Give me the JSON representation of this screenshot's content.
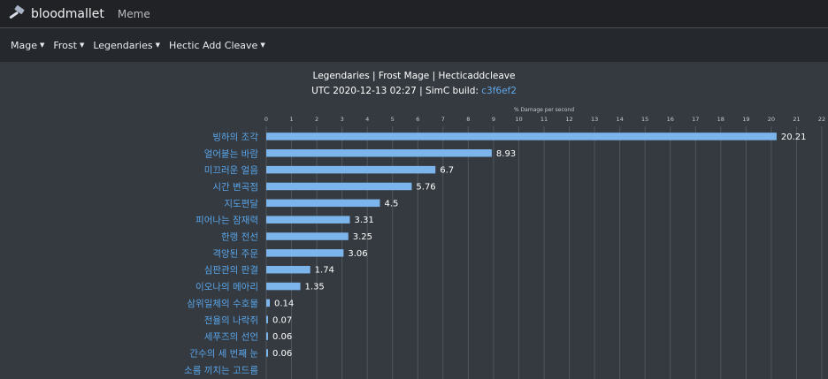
{
  "nav": {
    "brand": "bloodmallet",
    "meme": "Meme"
  },
  "filters": [
    {
      "label": "Mage"
    },
    {
      "label": "Frost"
    },
    {
      "label": "Legendaries"
    },
    {
      "label": "Hectic Add Cleave"
    }
  ],
  "chart_header": {
    "title": "Legendaries | Frost Mage | Hecticaddcleave",
    "subtitle_prefix": "UTC 2020-12-13 02:27 | SimC build: ",
    "build": "c3f6ef2"
  },
  "chart_data": {
    "type": "bar",
    "orientation": "horizontal",
    "title": "Legendaries | Frost Mage | Hecticaddcleave",
    "xlabel": "% Damage per second",
    "xlim": [
      0,
      22
    ],
    "ticks": [
      "0",
      "1",
      "2",
      "3",
      "4",
      "5",
      "6",
      "7",
      "8",
      "9",
      "10",
      "11",
      "12",
      "13",
      "14",
      "15",
      "16",
      "17",
      "18",
      "19",
      "20",
      "21",
      "22"
    ],
    "categories": [
      "빙하의 조각",
      "얼어붙는 바람",
      "미끄러운 얼음",
      "시간 변곡점",
      "지도편달",
      "피어나는 잠재력",
      "한랭 전선",
      "격앙된 주문",
      "심판관의 판결",
      "이오나의 메아리",
      "삼위일체의 수호물",
      "전율의 나락쥐",
      "세푸즈의 선언",
      "간수의 세 번째 눈",
      "소름 끼치는 고드름"
    ],
    "values": [
      20.21,
      8.93,
      6.7,
      5.76,
      4.5,
      3.31,
      3.25,
      3.06,
      1.74,
      1.35,
      0.14,
      0.07,
      0.06,
      0.06,
      null
    ],
    "value_labels": [
      "20.21",
      "8.93",
      "6.7",
      "5.76",
      "4.5",
      "3.31",
      "3.25",
      "3.06",
      "1.74",
      "1.35",
      "0.14",
      "0.07",
      "0.06",
      "0.06",
      ""
    ],
    "bar_color": "#7cb5ec",
    "grid": true
  }
}
